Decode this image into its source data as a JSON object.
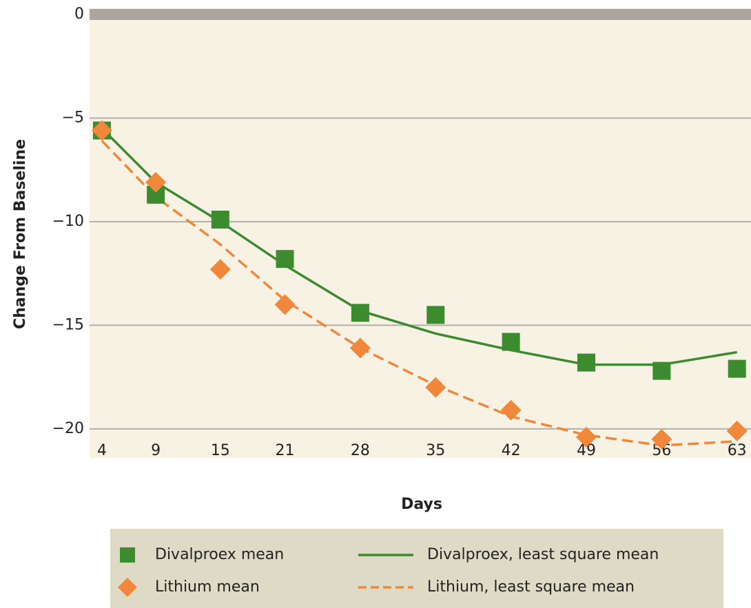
{
  "chart_data": {
    "type": "line",
    "x_label": "Days",
    "y_label": "Change From Baseline",
    "x": [
      4,
      9,
      15,
      21,
      28,
      35,
      42,
      49,
      56,
      63
    ],
    "xlim": [
      2.85,
      64.3
    ],
    "xticks": [
      4,
      9,
      15,
      21,
      28,
      35,
      42,
      49,
      56,
      63
    ],
    "ylim": [
      -21.4,
      0.3
    ],
    "yticks": [
      0,
      {
        "value": -5,
        "label": "−5"
      },
      {
        "value": -10,
        "label": "−10"
      },
      {
        "value": -15,
        "label": "−15"
      },
      {
        "value": -20,
        "label": "−20"
      }
    ],
    "grid": true,
    "series": [
      {
        "name": "Divalproex mean",
        "color": "#3d8b2f",
        "mode": "markers",
        "marker": "square",
        "values": [
          -5.6,
          -8.7,
          -9.9,
          -11.8,
          -14.4,
          -14.5,
          -15.8,
          -16.8,
          -17.2,
          -17.1
        ]
      },
      {
        "name": "Lithium mean",
        "color": "#f0873a",
        "mode": "markers",
        "marker": "diamond",
        "values": [
          -5.6,
          -8.1,
          -12.3,
          -14.0,
          -16.1,
          -18.0,
          -19.1,
          -20.4,
          -20.5,
          -20.1
        ]
      },
      {
        "name": "Divalproex, least square mean",
        "color": "#3d8b2f",
        "mode": "line",
        "dash": false,
        "values": [
          -5.5,
          -8.1,
          -10.0,
          -12.1,
          -14.3,
          -15.4,
          -16.2,
          -16.9,
          -16.9,
          -16.3
        ]
      },
      {
        "name": "Lithium, least square mean",
        "color": "#f0873a",
        "mode": "line",
        "dash": true,
        "values": [
          -6.1,
          -8.8,
          -11.1,
          -13.8,
          -16.1,
          -17.9,
          -19.4,
          -20.3,
          -20.8,
          -20.6
        ]
      }
    ]
  }
}
